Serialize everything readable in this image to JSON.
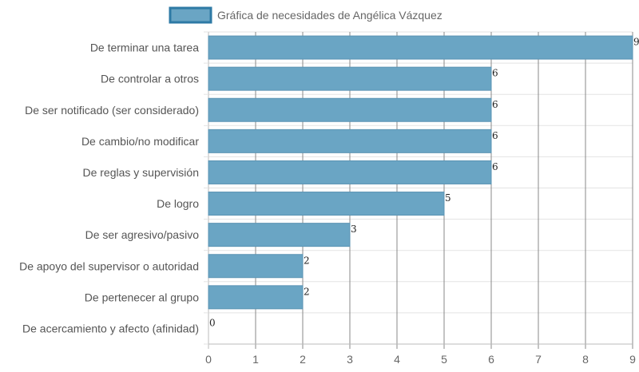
{
  "chart_data": {
    "type": "bar",
    "orientation": "horizontal",
    "legend": {
      "label": "Gráfica de necesidades de Angélica Vázquez",
      "placement": "top"
    },
    "categories": [
      "De terminar una tarea",
      "De controlar a otros",
      "De ser notificado (ser considerado)",
      "De cambio/no modificar",
      "De reglas y supervisión",
      "De logro",
      "De ser agresivo/pasivo",
      "De apoyo del supervisor o autoridad",
      "De pertenecer al grupo",
      "De acercamiento y afecto (afinidad)"
    ],
    "series": [
      {
        "name": "Gráfica de necesidades de Angélica Vázquez",
        "values": [
          9,
          6,
          6,
          6,
          6,
          5,
          3,
          2,
          2,
          0
        ]
      }
    ],
    "xlim": [
      0,
      9
    ],
    "x_ticks": [
      "0",
      "1",
      "2",
      "3",
      "4",
      "5",
      "6",
      "7",
      "8",
      "9"
    ],
    "grid": true,
    "data_labels": true,
    "colors": {
      "bar_fill": "#6aa5c4",
      "bar_border": "#5a93b3",
      "legend_swatch": "#6aa5c4",
      "legend_border": "#2e7aa5"
    }
  }
}
